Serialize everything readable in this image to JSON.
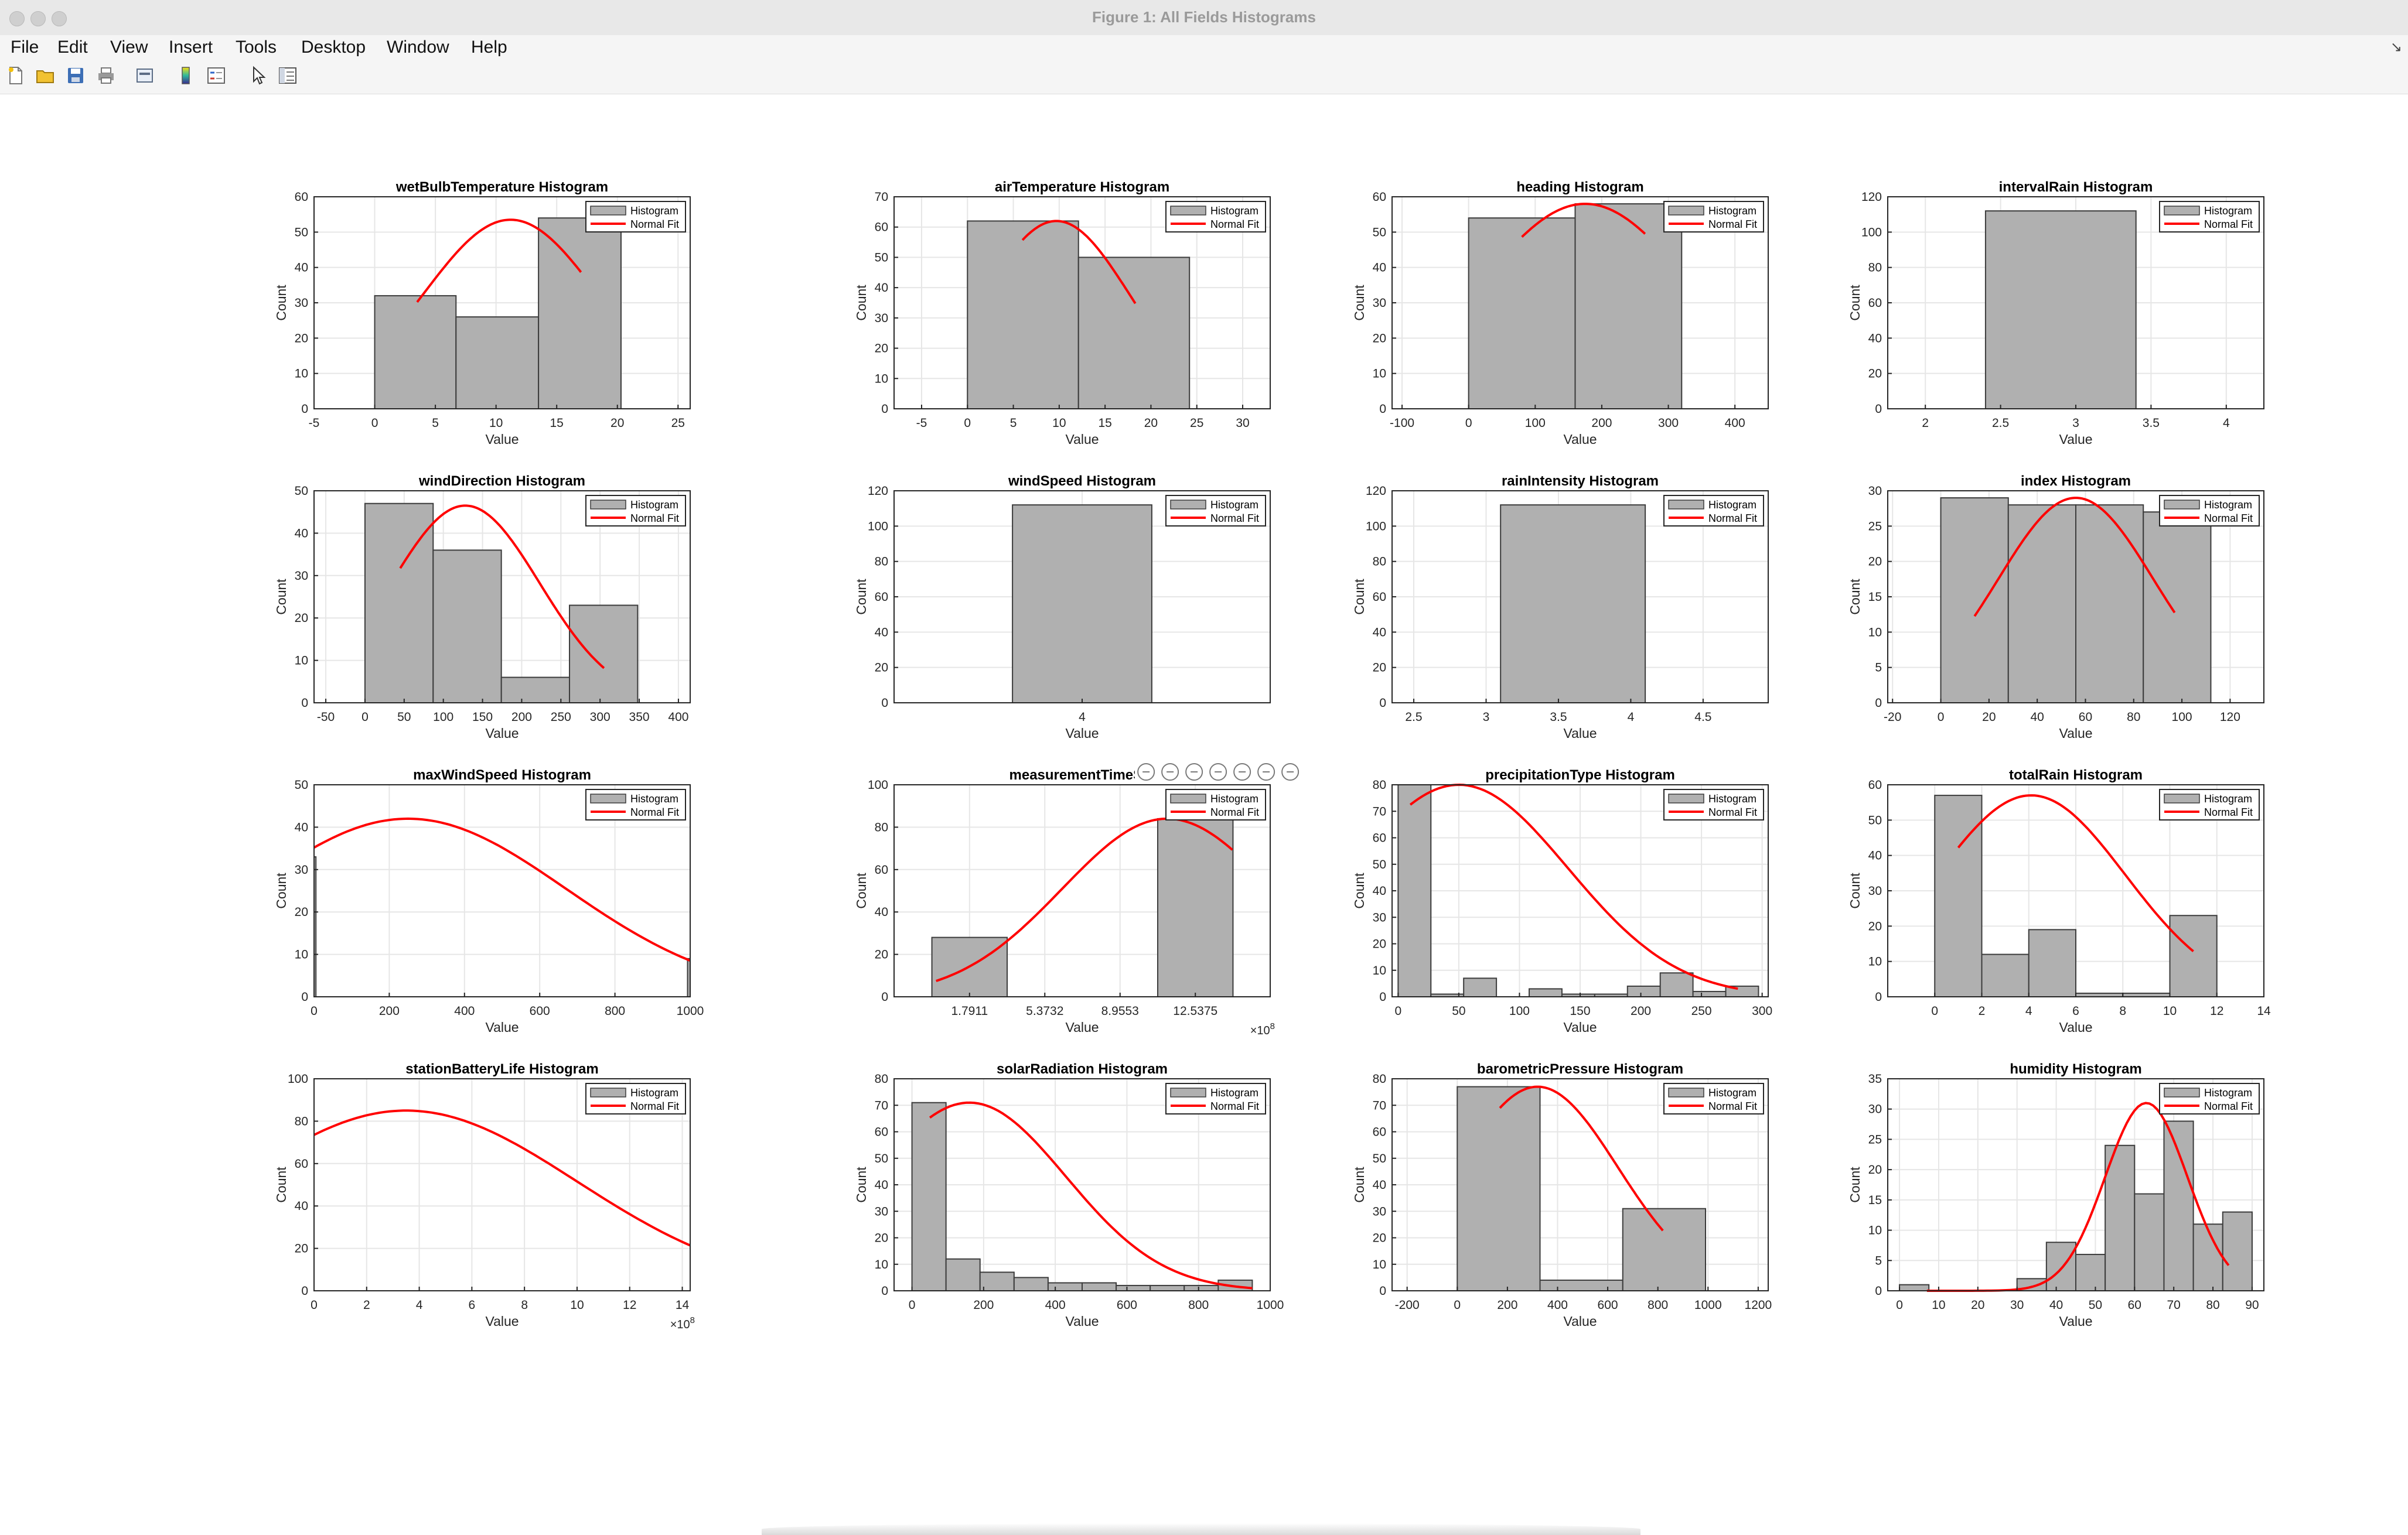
{
  "window": {
    "title": "Figure 1: All Fields Histograms"
  },
  "menu": [
    "File",
    "Edit",
    "View",
    "Insert",
    "Tools",
    "Desktop",
    "Window",
    "Help"
  ],
  "toolbar": [
    "new-figure-icon",
    "open-file-icon",
    "save-icon",
    "print-icon",
    "print-preview-icon",
    "colorbar-icon",
    "legend-icon",
    "pointer-icon",
    "property-editor-icon"
  ],
  "axes_toolbar": [
    "data-tips-icon",
    "brush-icon",
    "restore-icon",
    "pan-icon",
    "zoom-in-icon",
    "zoom-out-icon",
    "home-icon"
  ],
  "colors": {
    "bar": "#b0b0b0",
    "bar_edge": "#3c3c3c",
    "fit": "#ff0000",
    "grid": "#e6e6e6"
  },
  "legend_labels": {
    "histogram": "Histogram",
    "fit": "Normal Fit"
  },
  "chart_data": [
    {
      "type": "bar",
      "title": "wetBulbTemperature Histogram",
      "xlabel": "Value",
      "ylabel": "Count",
      "xlim": [
        -5,
        26
      ],
      "ylim": [
        0,
        60
      ],
      "xticks": [
        -5,
        0,
        5,
        10,
        15,
        20,
        25
      ],
      "yticks": [
        0,
        10,
        20,
        30,
        40,
        50,
        60
      ],
      "bins": [
        [
          0,
          6.7,
          32
        ],
        [
          6.7,
          13.5,
          26
        ],
        [
          13.5,
          20.3,
          54
        ]
      ],
      "fit": {
        "mu": 11.2,
        "sigma": 7.2,
        "peak": 53.5,
        "x0": 3.5,
        "x1": 17
      },
      "legend": "top-right",
      "grid": true
    },
    {
      "type": "bar",
      "title": "airTemperature Histogram",
      "xlabel": "Value",
      "ylabel": "Count",
      "xlim": [
        -8,
        33
      ],
      "ylim": [
        0,
        70
      ],
      "xticks": [
        -5,
        0,
        5,
        10,
        15,
        20,
        25,
        30
      ],
      "yticks": [
        0,
        10,
        20,
        30,
        40,
        50,
        60,
        70
      ],
      "bins": [
        [
          0,
          12.1,
          62
        ],
        [
          12.1,
          24.2,
          50
        ]
      ],
      "fit": {
        "mu": 9.7,
        "sigma": 8,
        "peak": 62,
        "x0": 6,
        "x1": 18.3
      },
      "legend": "top-right",
      "grid": true
    },
    {
      "type": "bar",
      "title": "heading Histogram",
      "xlabel": "Value",
      "ylabel": "Count",
      "xlim": [
        -115,
        450
      ],
      "ylim": [
        0,
        60
      ],
      "xticks": [
        -100,
        0,
        100,
        200,
        300,
        400
      ],
      "yticks": [
        0,
        10,
        20,
        30,
        40,
        50,
        60
      ],
      "bins": [
        [
          0,
          160,
          54
        ],
        [
          160,
          320,
          58
        ]
      ],
      "fit": {
        "mu": 175,
        "sigma": 160,
        "peak": 58,
        "x0": 80,
        "x1": 265
      },
      "legend": "top-right",
      "grid": true
    },
    {
      "type": "bar",
      "title": "intervalRain Histogram",
      "xlabel": "Value",
      "ylabel": "Count",
      "xlim": [
        1.75,
        4.25
      ],
      "ylim": [
        0,
        120
      ],
      "xticks": [
        2,
        2.5,
        3,
        3.5,
        4
      ],
      "yticks": [
        0,
        20,
        40,
        60,
        80,
        100,
        120
      ],
      "bins": [
        [
          2.4,
          3.4,
          112
        ]
      ],
      "fit": null,
      "legend": "top-right",
      "grid": true
    },
    {
      "type": "bar",
      "title": "windDirection Histogram",
      "xlabel": "Value",
      "ylabel": "Count",
      "xlim": [
        -65,
        415
      ],
      "ylim": [
        0,
        50
      ],
      "xticks": [
        -50,
        0,
        50,
        100,
        150,
        200,
        250,
        300,
        350,
        400
      ],
      "yticks": [
        0,
        10,
        20,
        30,
        40,
        50
      ],
      "bins": [
        [
          0,
          87,
          47
        ],
        [
          87,
          174,
          36
        ],
        [
          174,
          261,
          6
        ],
        [
          261,
          348,
          23
        ]
      ],
      "fit": {
        "mu": 128,
        "sigma": 95,
        "peak": 46.5,
        "x0": 45,
        "x1": 305
      },
      "legend": "top-right",
      "grid": true
    },
    {
      "type": "bar",
      "title": "windSpeed Histogram",
      "xlabel": "Value",
      "ylabel": "Count",
      "xlim": [
        2.38,
        5.62
      ],
      "ylim": [
        0,
        120
      ],
      "xticks": [
        4
      ],
      "yticks": [
        0,
        20,
        40,
        60,
        80,
        100,
        120
      ],
      "bins": [
        [
          3.4,
          4.6,
          112
        ]
      ],
      "fit": null,
      "legend": "top-right",
      "grid": true
    },
    {
      "type": "bar",
      "title": "rainIntensity Histogram",
      "xlabel": "Value",
      "ylabel": "Count",
      "xlim": [
        2.35,
        4.95
      ],
      "ylim": [
        0,
        120
      ],
      "xticks": [
        2.5,
        3,
        3.5,
        4,
        4.5
      ],
      "yticks": [
        0,
        20,
        40,
        60,
        80,
        100,
        120
      ],
      "bins": [
        [
          3.1,
          4.1,
          112
        ]
      ],
      "fit": null,
      "legend": "top-right",
      "grid": true
    },
    {
      "type": "bar",
      "title": "index Histogram",
      "xlabel": "Value",
      "ylabel": "Count",
      "xlim": [
        -22,
        134
      ],
      "ylim": [
        0,
        30
      ],
      "xticks": [
        -20,
        0,
        20,
        40,
        60,
        80,
        100,
        120
      ],
      "yticks": [
        0,
        5,
        10,
        15,
        20,
        25,
        30
      ],
      "bins": [
        [
          0,
          28,
          29
        ],
        [
          28,
          56,
          28
        ],
        [
          56,
          84,
          28
        ],
        [
          84,
          112,
          27
        ]
      ],
      "fit": {
        "mu": 56,
        "sigma": 32,
        "peak": 29,
        "x0": 14,
        "x1": 97
      },
      "legend": "top-right",
      "grid": true
    },
    {
      "type": "bar",
      "title": "maxWindSpeed Histogram",
      "xlabel": "Value",
      "ylabel": "Count",
      "xlim": [
        0,
        1000
      ],
      "ylim": [
        0,
        50
      ],
      "xticks": [
        0,
        200,
        400,
        600,
        800,
        1000
      ],
      "yticks": [
        0,
        10,
        20,
        30,
        40,
        50
      ],
      "bins": [
        [
          0,
          5,
          33
        ],
        [
          993,
          1000,
          9
        ]
      ],
      "fit": {
        "mu": 250,
        "sigma": 420,
        "peak": 42,
        "x0": 0,
        "x1": 1000
      },
      "legend": "top-right",
      "grid": true
    },
    {
      "type": "bar",
      "title": "measurementTimeSta",
      "xlabel": "Value",
      "ylabel": "Count",
      "xlim": [
        -1.8,
        16.1
      ],
      "ylim": [
        0,
        100
      ],
      "xticks": [
        1.7911,
        5.3732,
        8.9553,
        12.5375
      ],
      "yticks": [
        0,
        20,
        40,
        60,
        80,
        100
      ],
      "xscale_label": "×10^8",
      "bins": [
        [
          0,
          3.5822,
          28
        ],
        [
          10.7464,
          14.3286,
          84
        ]
      ],
      "fit": {
        "mu": 11.2,
        "sigma": 5,
        "peak": 84,
        "x0": 0.2,
        "x1": 14.3
      },
      "legend": "top-right",
      "grid": true,
      "toolbar_overlay": true
    },
    {
      "type": "bar",
      "title": "precipitationType Histogram",
      "xlabel": "Value",
      "ylabel": "Count",
      "xlim": [
        -5,
        305
      ],
      "ylim": [
        0,
        80
      ],
      "xticks": [
        0,
        50,
        100,
        150,
        200,
        250,
        300
      ],
      "yticks": [
        0,
        10,
        20,
        30,
        40,
        50,
        60,
        70,
        80
      ],
      "bins": [
        [
          0,
          27,
          80
        ],
        [
          27,
          54,
          1
        ],
        [
          54,
          81,
          7
        ],
        [
          81,
          108,
          0
        ],
        [
          108,
          135,
          3
        ],
        [
          135,
          162,
          1
        ],
        [
          162,
          189,
          1
        ],
        [
          189,
          216,
          4
        ],
        [
          216,
          243,
          9
        ],
        [
          243,
          270,
          2
        ],
        [
          270,
          297,
          4
        ]
      ],
      "fit": {
        "mu": 50,
        "sigma": 90,
        "peak": 80,
        "x0": 10,
        "x1": 280
      },
      "legend": "top-right",
      "grid": true
    },
    {
      "type": "bar",
      "title": "totalRain Histogram",
      "xlabel": "Value",
      "ylabel": "Count",
      "xlim": [
        -2,
        14
      ],
      "ylim": [
        0,
        60
      ],
      "xticks": [
        0,
        2,
        4,
        6,
        8,
        10,
        12,
        14
      ],
      "yticks": [
        0,
        10,
        20,
        30,
        40,
        50,
        60
      ],
      "bins": [
        [
          0,
          2,
          57
        ],
        [
          2,
          4,
          12
        ],
        [
          4,
          6,
          19
        ],
        [
          6,
          8,
          1
        ],
        [
          8,
          10,
          1
        ],
        [
          10,
          12,
          23
        ]
      ],
      "fit": {
        "mu": 4.1,
        "sigma": 4,
        "peak": 57,
        "x0": 1,
        "x1": 11
      },
      "legend": "top-right",
      "grid": true
    },
    {
      "type": "bar",
      "title": "stationBatteryLife Histogram",
      "xlabel": "Value",
      "ylabel": "Count",
      "xlim": [
        0,
        14.3
      ],
      "ylim": [
        0,
        100
      ],
      "xticks": [
        0,
        2,
        4,
        6,
        8,
        10,
        12,
        14
      ],
      "yticks": [
        0,
        20,
        40,
        60,
        80,
        100
      ],
      "xscale_label": "×10^8",
      "bins": [],
      "fit": {
        "mu": 3.5,
        "sigma": 6.5,
        "peak": 85,
        "x0": 0,
        "x1": 14.3
      },
      "legend": "top-right",
      "grid": true
    },
    {
      "type": "bar",
      "title": "solarRadiation Histogram",
      "xlabel": "Value",
      "ylabel": "Count",
      "xlim": [
        -50,
        1000
      ],
      "ylim": [
        0,
        80
      ],
      "xticks": [
        0,
        200,
        400,
        600,
        800,
        1000
      ],
      "yticks": [
        0,
        10,
        20,
        30,
        40,
        50,
        60,
        70,
        80
      ],
      "bins": [
        [
          0,
          95,
          71
        ],
        [
          95,
          190,
          12
        ],
        [
          190,
          285,
          7
        ],
        [
          285,
          380,
          5
        ],
        [
          380,
          475,
          3
        ],
        [
          475,
          570,
          3
        ],
        [
          570,
          665,
          2
        ],
        [
          665,
          760,
          2
        ],
        [
          760,
          855,
          2
        ],
        [
          855,
          950,
          4
        ],
        [
          950,
          1000,
          0
        ]
      ],
      "fit": {
        "mu": 160,
        "sigma": 270,
        "peak": 71,
        "x0": 50,
        "x1": 950
      },
      "legend": "top-right",
      "grid": true
    },
    {
      "type": "bar",
      "title": "barometricPressure Histogram",
      "xlabel": "Value",
      "ylabel": "Count",
      "xlim": [
        -260,
        1240
      ],
      "ylim": [
        0,
        80
      ],
      "xticks": [
        -200,
        0,
        200,
        400,
        600,
        800,
        1000,
        1200
      ],
      "yticks": [
        0,
        10,
        20,
        30,
        40,
        50,
        60,
        70,
        80
      ],
      "bins": [
        [
          0,
          330,
          77
        ],
        [
          330,
          660,
          4
        ],
        [
          660,
          990,
          31
        ]
      ],
      "fit": {
        "mu": 320,
        "sigma": 320,
        "peak": 77,
        "x0": 170,
        "x1": 820
      },
      "legend": "top-right",
      "grid": true
    },
    {
      "type": "bar",
      "title": "humidity Histogram",
      "xlabel": "Value",
      "ylabel": "Count",
      "xlim": [
        -3,
        93
      ],
      "ylim": [
        0,
        35
      ],
      "xticks": [
        0,
        10,
        20,
        30,
        40,
        50,
        60,
        70,
        80,
        90
      ],
      "yticks": [
        0,
        5,
        10,
        15,
        20,
        25,
        30,
        35
      ],
      "bins": [
        [
          0,
          7.5,
          1
        ],
        [
          7.5,
          15,
          0
        ],
        [
          15,
          22.5,
          0
        ],
        [
          22.5,
          30,
          0
        ],
        [
          30,
          37.5,
          2
        ],
        [
          37.5,
          45,
          8
        ],
        [
          45,
          52.5,
          6
        ],
        [
          52.5,
          60,
          24
        ],
        [
          60,
          67.5,
          16
        ],
        [
          67.5,
          75,
          28
        ],
        [
          75,
          82.5,
          11
        ],
        [
          82.5,
          90,
          13
        ]
      ],
      "fit": {
        "mu": 63,
        "sigma": 10.5,
        "peak": 31,
        "x0": 7,
        "x1": 84
      },
      "legend": "top-right",
      "grid": true
    }
  ]
}
